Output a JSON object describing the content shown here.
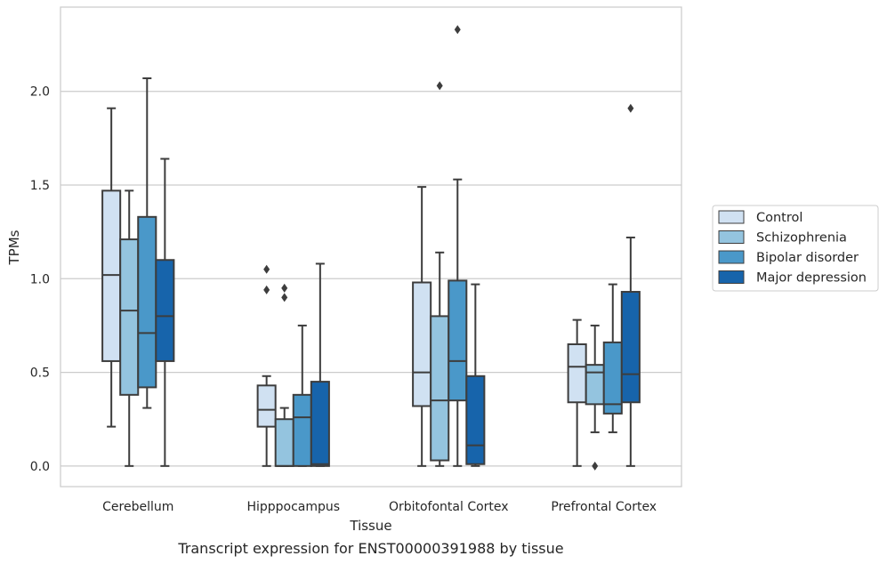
{
  "caption": "Transcript expression for ENST00000391988 by tissue",
  "chart_data": {
    "type": "box",
    "xlabel": "Tissue",
    "ylabel": "TPMs",
    "ylim": [
      -0.11,
      2.45
    ],
    "yticks": [
      0.0,
      0.5,
      1.0,
      1.5,
      2.0
    ],
    "ytick_labels": [
      "0.0",
      "0.5",
      "1.0",
      "1.5",
      "2.0"
    ],
    "grid": "horizontal",
    "legend_position": "outside-right",
    "categories": [
      "Cerebellum",
      "Hipppocampus",
      "Orbitofontal Cortex",
      "Prefrontal Cortex"
    ],
    "series": [
      {
        "name": "Control",
        "color": "#d0e1f2",
        "boxes": [
          {
            "whislo": 0.21,
            "q1": 0.56,
            "med": 1.02,
            "q3": 1.47,
            "whishi": 1.91,
            "fliers": []
          },
          {
            "whislo": 0.0,
            "q1": 0.21,
            "med": 0.3,
            "q3": 0.43,
            "whishi": 0.48,
            "fliers": [
              0.94,
              1.05
            ]
          },
          {
            "whislo": 0.0,
            "q1": 0.32,
            "med": 0.5,
            "q3": 0.98,
            "whishi": 1.49,
            "fliers": []
          },
          {
            "whislo": 0.0,
            "q1": 0.34,
            "med": 0.53,
            "q3": 0.65,
            "whishi": 0.78,
            "fliers": []
          }
        ]
      },
      {
        "name": "Schizophrenia",
        "color": "#94c4df",
        "boxes": [
          {
            "whislo": 0.0,
            "q1": 0.38,
            "med": 0.83,
            "q3": 1.21,
            "whishi": 1.47,
            "fliers": []
          },
          {
            "whislo": 0.0,
            "q1": 0.0,
            "med": 0.0,
            "q3": 0.25,
            "whishi": 0.31,
            "fliers": [
              0.9,
              0.95
            ]
          },
          {
            "whislo": 0.0,
            "q1": 0.03,
            "med": 0.35,
            "q3": 0.8,
            "whishi": 1.14,
            "fliers": [
              2.03
            ]
          },
          {
            "whislo": 0.18,
            "q1": 0.33,
            "med": 0.5,
            "q3": 0.54,
            "whishi": 0.75,
            "fliers": [
              0.0
            ]
          }
        ]
      },
      {
        "name": "Bipolar disorder",
        "color": "#4a98c9",
        "boxes": [
          {
            "whislo": 0.31,
            "q1": 0.42,
            "med": 0.71,
            "q3": 1.33,
            "whishi": 2.07,
            "fliers": []
          },
          {
            "whislo": 0.0,
            "q1": 0.0,
            "med": 0.26,
            "q3": 0.38,
            "whishi": 0.75,
            "fliers": []
          },
          {
            "whislo": 0.0,
            "q1": 0.35,
            "med": 0.56,
            "q3": 0.99,
            "whishi": 1.53,
            "fliers": [
              2.33
            ]
          },
          {
            "whislo": 0.18,
            "q1": 0.28,
            "med": 0.33,
            "q3": 0.66,
            "whishi": 0.97,
            "fliers": []
          }
        ]
      },
      {
        "name": "Major depression",
        "color": "#1764ab",
        "boxes": [
          {
            "whislo": 0.0,
            "q1": 0.56,
            "med": 0.8,
            "q3": 1.1,
            "whishi": 1.64,
            "fliers": []
          },
          {
            "whislo": 0.0,
            "q1": 0.0,
            "med": 0.01,
            "q3": 0.45,
            "whishi": 1.08,
            "fliers": []
          },
          {
            "whislo": 0.0,
            "q1": 0.01,
            "med": 0.11,
            "q3": 0.48,
            "whishi": 0.97,
            "fliers": []
          },
          {
            "whislo": 0.0,
            "q1": 0.34,
            "med": 0.49,
            "q3": 0.93,
            "whishi": 1.22,
            "fliers": [
              1.91
            ]
          }
        ]
      }
    ]
  }
}
